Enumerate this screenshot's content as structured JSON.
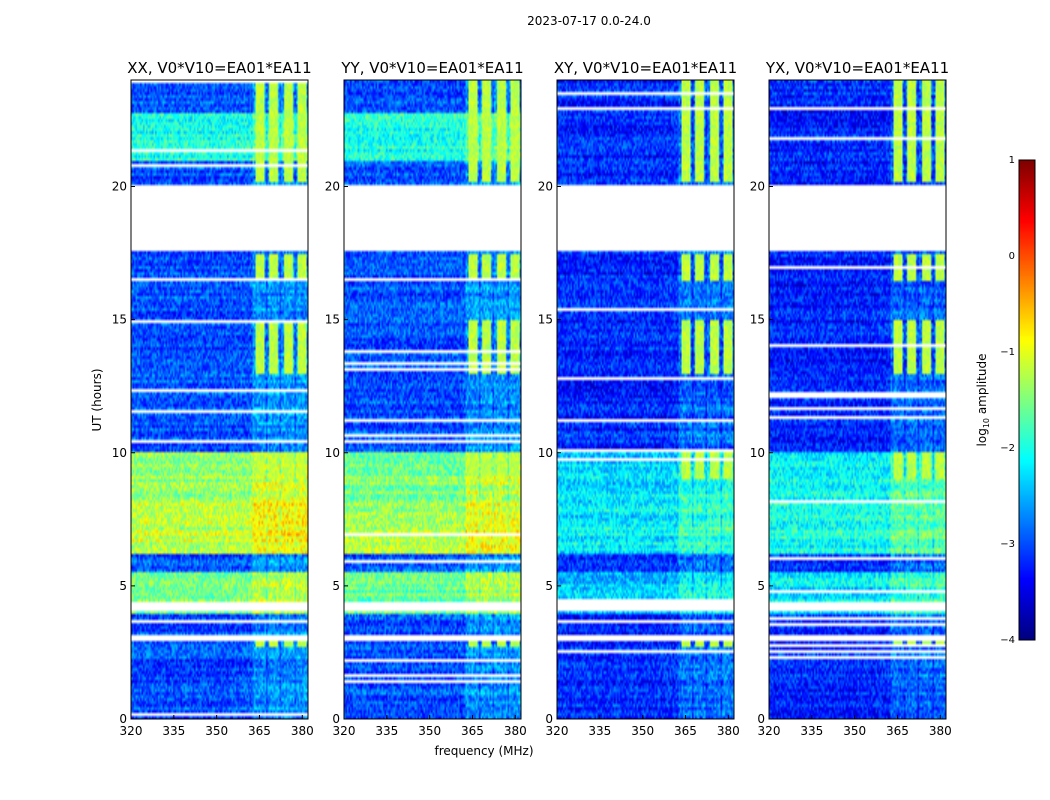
{
  "figure": {
    "suptitle": "2023-07-17 0.0-24.0",
    "ylabel": "UT (hours)",
    "xlabel": "frequency (MHz)",
    "cbar_label": "log",
    "cbar_label_sub": "10",
    "cbar_label_rest": " amplitude"
  },
  "chart_data": {
    "type": "heatmap",
    "title": "2023-07-17 0.0-24.0",
    "xlabel": "frequency (MHz)",
    "ylabel": "UT (hours)",
    "xlim": [
      320,
      382
    ],
    "ylim": [
      0,
      24
    ],
    "xticks": [
      320,
      335,
      350,
      365,
      380
    ],
    "yticks": [
      0,
      5,
      10,
      15,
      20
    ],
    "colorbar": {
      "label": "log10 amplitude",
      "range": [
        -4,
        1
      ],
      "ticks": [
        1,
        0,
        -1,
        -2,
        -3,
        -4
      ],
      "colormap": "jet"
    },
    "panels": [
      {
        "title": "XX, V0*V10=EA01*EA11",
        "background": -3.0,
        "bright_bands": [
          {
            "t0": 8.2,
            "t1": 10.0,
            "level": -1.4
          },
          {
            "t0": 6.2,
            "t1": 8.2,
            "level": -1.2
          },
          {
            "t0": 4.0,
            "t1": 5.5,
            "level": -1.5
          },
          {
            "t0": 21.0,
            "t1": 22.8,
            "level": -2.0
          }
        ]
      },
      {
        "title": "YY, V0*V10=EA01*EA11",
        "background": -3.0,
        "bright_bands": [
          {
            "t0": 8.2,
            "t1": 10.0,
            "level": -1.5
          },
          {
            "t0": 6.2,
            "t1": 8.2,
            "level": -1.3
          },
          {
            "t0": 4.0,
            "t1": 5.5,
            "level": -1.6
          },
          {
            "t0": 21.0,
            "t1": 22.8,
            "level": -2.0
          }
        ]
      },
      {
        "title": "XY, V0*V10=EA01*EA11",
        "background": -3.2,
        "bright_bands": [
          {
            "t0": 8.2,
            "t1": 10.0,
            "level": -2.3
          },
          {
            "t0": 6.2,
            "t1": 8.2,
            "level": -2.2
          },
          {
            "t0": 4.0,
            "t1": 5.5,
            "level": -2.4
          }
        ]
      },
      {
        "title": "YX, V0*V10=EA01*EA11",
        "background": -3.2,
        "bright_bands": [
          {
            "t0": 8.2,
            "t1": 10.0,
            "level": -2.1
          },
          {
            "t0": 6.2,
            "t1": 8.2,
            "level": -2.0
          },
          {
            "t0": 4.0,
            "t1": 5.5,
            "level": -2.2
          }
        ]
      }
    ],
    "data_gaps_hours": [
      [
        20.1,
        17.6
      ],
      [
        4.4,
        4.1
      ],
      [
        3.1,
        2.9
      ]
    ],
    "rfi_channels_MHz": [
      365,
      370,
      375,
      380
    ]
  }
}
